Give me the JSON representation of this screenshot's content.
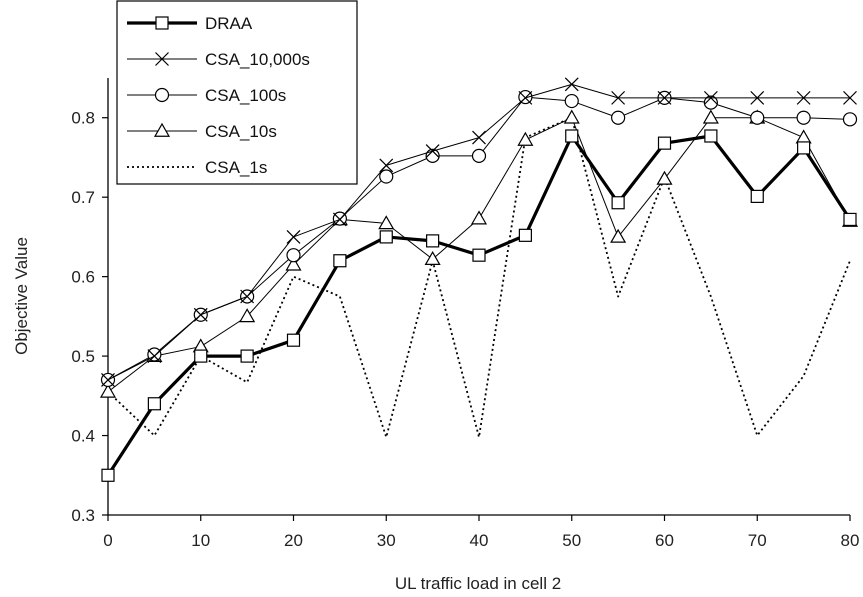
{
  "chart_data": {
    "type": "line",
    "title": "",
    "xlabel": "UL traffic load in cell 2",
    "ylabel": "Objective Value",
    "xlim": [
      0,
      80
    ],
    "ylim": [
      0.3,
      0.85
    ],
    "xticks": [
      0,
      10,
      20,
      30,
      40,
      50,
      60,
      70,
      80
    ],
    "xtick_labels": [
      "0",
      "10",
      "20",
      "30",
      "40",
      "50",
      "60",
      "70",
      "80"
    ],
    "yticks": [
      0.3,
      0.4,
      0.5,
      0.6,
      0.7,
      0.8
    ],
    "ytick_labels": [
      "0.3",
      "0.4",
      "0.5",
      "0.6",
      "0.7",
      "0.8"
    ],
    "grid": false,
    "legend_position": "top-left",
    "x": [
      0,
      5,
      10,
      15,
      20,
      25,
      30,
      35,
      40,
      45,
      50,
      55,
      60,
      65,
      70,
      75,
      80
    ],
    "series": [
      {
        "name": "DRAA",
        "marker": "square",
        "line": "solid-bold",
        "color": "#000000",
        "values": [
          0.35,
          0.44,
          0.5,
          0.5,
          0.52,
          0.62,
          0.65,
          0.645,
          0.627,
          0.652,
          0.777,
          0.693,
          0.768,
          0.777,
          0.701,
          0.762,
          0.672
        ]
      },
      {
        "name": "CSA_10,000s",
        "marker": "x",
        "line": "solid",
        "color": "#000000",
        "values": [
          0.47,
          0.5,
          0.552,
          0.575,
          0.65,
          0.672,
          0.74,
          0.758,
          0.775,
          0.825,
          0.842,
          0.825,
          0.825,
          0.825,
          0.825,
          0.825,
          0.825
        ]
      },
      {
        "name": "CSA_100s",
        "marker": "circle",
        "line": "solid",
        "color": "#000000",
        "values": [
          0.47,
          0.502,
          0.552,
          0.575,
          0.627,
          0.673,
          0.726,
          0.752,
          0.752,
          0.826,
          0.821,
          0.8,
          0.825,
          0.819,
          0.8,
          0.8,
          0.798
        ]
      },
      {
        "name": "CSA_10s",
        "marker": "triangle",
        "line": "solid",
        "color": "#000000",
        "values": [
          0.455,
          0.5,
          0.512,
          0.55,
          0.615,
          0.672,
          0.667,
          0.622,
          0.673,
          0.772,
          0.8,
          0.65,
          0.723,
          0.8,
          0.8,
          0.775,
          0.67
        ]
      },
      {
        "name": "CSA_1s",
        "marker": "none",
        "line": "dotted",
        "color": "#000000",
        "values": [
          0.455,
          0.4,
          0.5,
          0.467,
          0.6,
          0.575,
          0.398,
          0.62,
          0.398,
          0.775,
          0.8,
          0.575,
          0.725,
          0.575,
          0.4,
          0.475,
          0.62
        ]
      }
    ]
  }
}
